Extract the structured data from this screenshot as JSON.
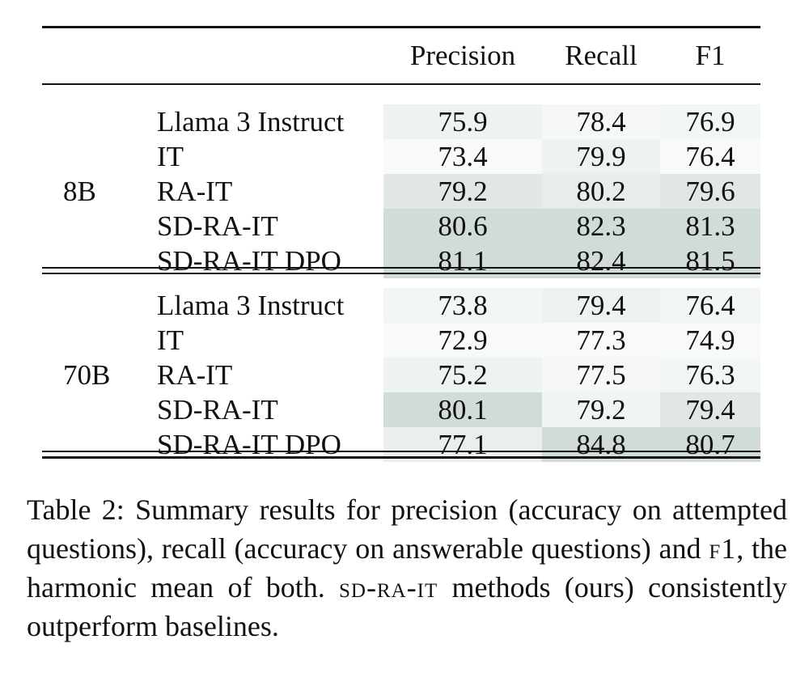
{
  "header": {
    "columns": [
      "Precision",
      "Recall",
      "F1"
    ]
  },
  "groups": [
    {
      "label": "8B",
      "rows": [
        {
          "method": "Llama 3 Instruct",
          "values": [
            "75.9",
            "78.4",
            "76.9"
          ],
          "shade": [
            0.25,
            0.1,
            0.15
          ]
        },
        {
          "method": "IT",
          "values": [
            "73.4",
            "79.9",
            "76.4"
          ],
          "shade": [
            0.05,
            0.25,
            0.05
          ]
        },
        {
          "method": "RA-IT",
          "values": [
            "79.2",
            "80.2",
            "79.6"
          ],
          "shade": [
            0.55,
            0.4,
            0.55
          ]
        },
        {
          "method": "SD-RA-IT",
          "values": [
            "80.6",
            "82.3",
            "81.3"
          ],
          "shade": [
            0.9,
            0.9,
            0.9
          ]
        },
        {
          "method": "SD-RA-IT DPO",
          "values": [
            "81.1",
            "82.4",
            "81.5"
          ],
          "shade": [
            0.9,
            0.9,
            0.9
          ]
        }
      ]
    },
    {
      "label": "70B",
      "rows": [
        {
          "method": "Llama 3 Instruct",
          "values": [
            "73.8",
            "79.4",
            "76.4"
          ],
          "shade": [
            0.15,
            0.25,
            0.15
          ]
        },
        {
          "method": "IT",
          "values": [
            "72.9",
            "77.3",
            "74.9"
          ],
          "shade": [
            0.05,
            0.05,
            0.05
          ]
        },
        {
          "method": "RA-IT",
          "values": [
            "75.2",
            "77.5",
            "76.3"
          ],
          "shade": [
            0.25,
            0.1,
            0.15
          ]
        },
        {
          "method": "SD-RA-IT",
          "values": [
            "80.1",
            "79.2",
            "79.4"
          ],
          "shade": [
            0.9,
            0.2,
            0.55
          ]
        },
        {
          "method": "SD-RA-IT DPO",
          "values": [
            "77.1",
            "84.8",
            "80.7"
          ],
          "shade": [
            0.35,
            0.9,
            0.9
          ]
        }
      ]
    }
  ],
  "colors": {
    "shade_light": "#f9fcf9",
    "shade_dark": "#cdd8d2",
    "rule": "#111111"
  },
  "caption": {
    "prefix": "Table 2: Summary results for precision (accuracy on attempted questions), recall (accuracy on answerable questions) and",
    "f1_term": "f1",
    "middle": ", the harmonic mean of both.",
    "method_term": "sd-ra-it",
    "suffix": "methods (ours) consistently outperform baselines."
  }
}
